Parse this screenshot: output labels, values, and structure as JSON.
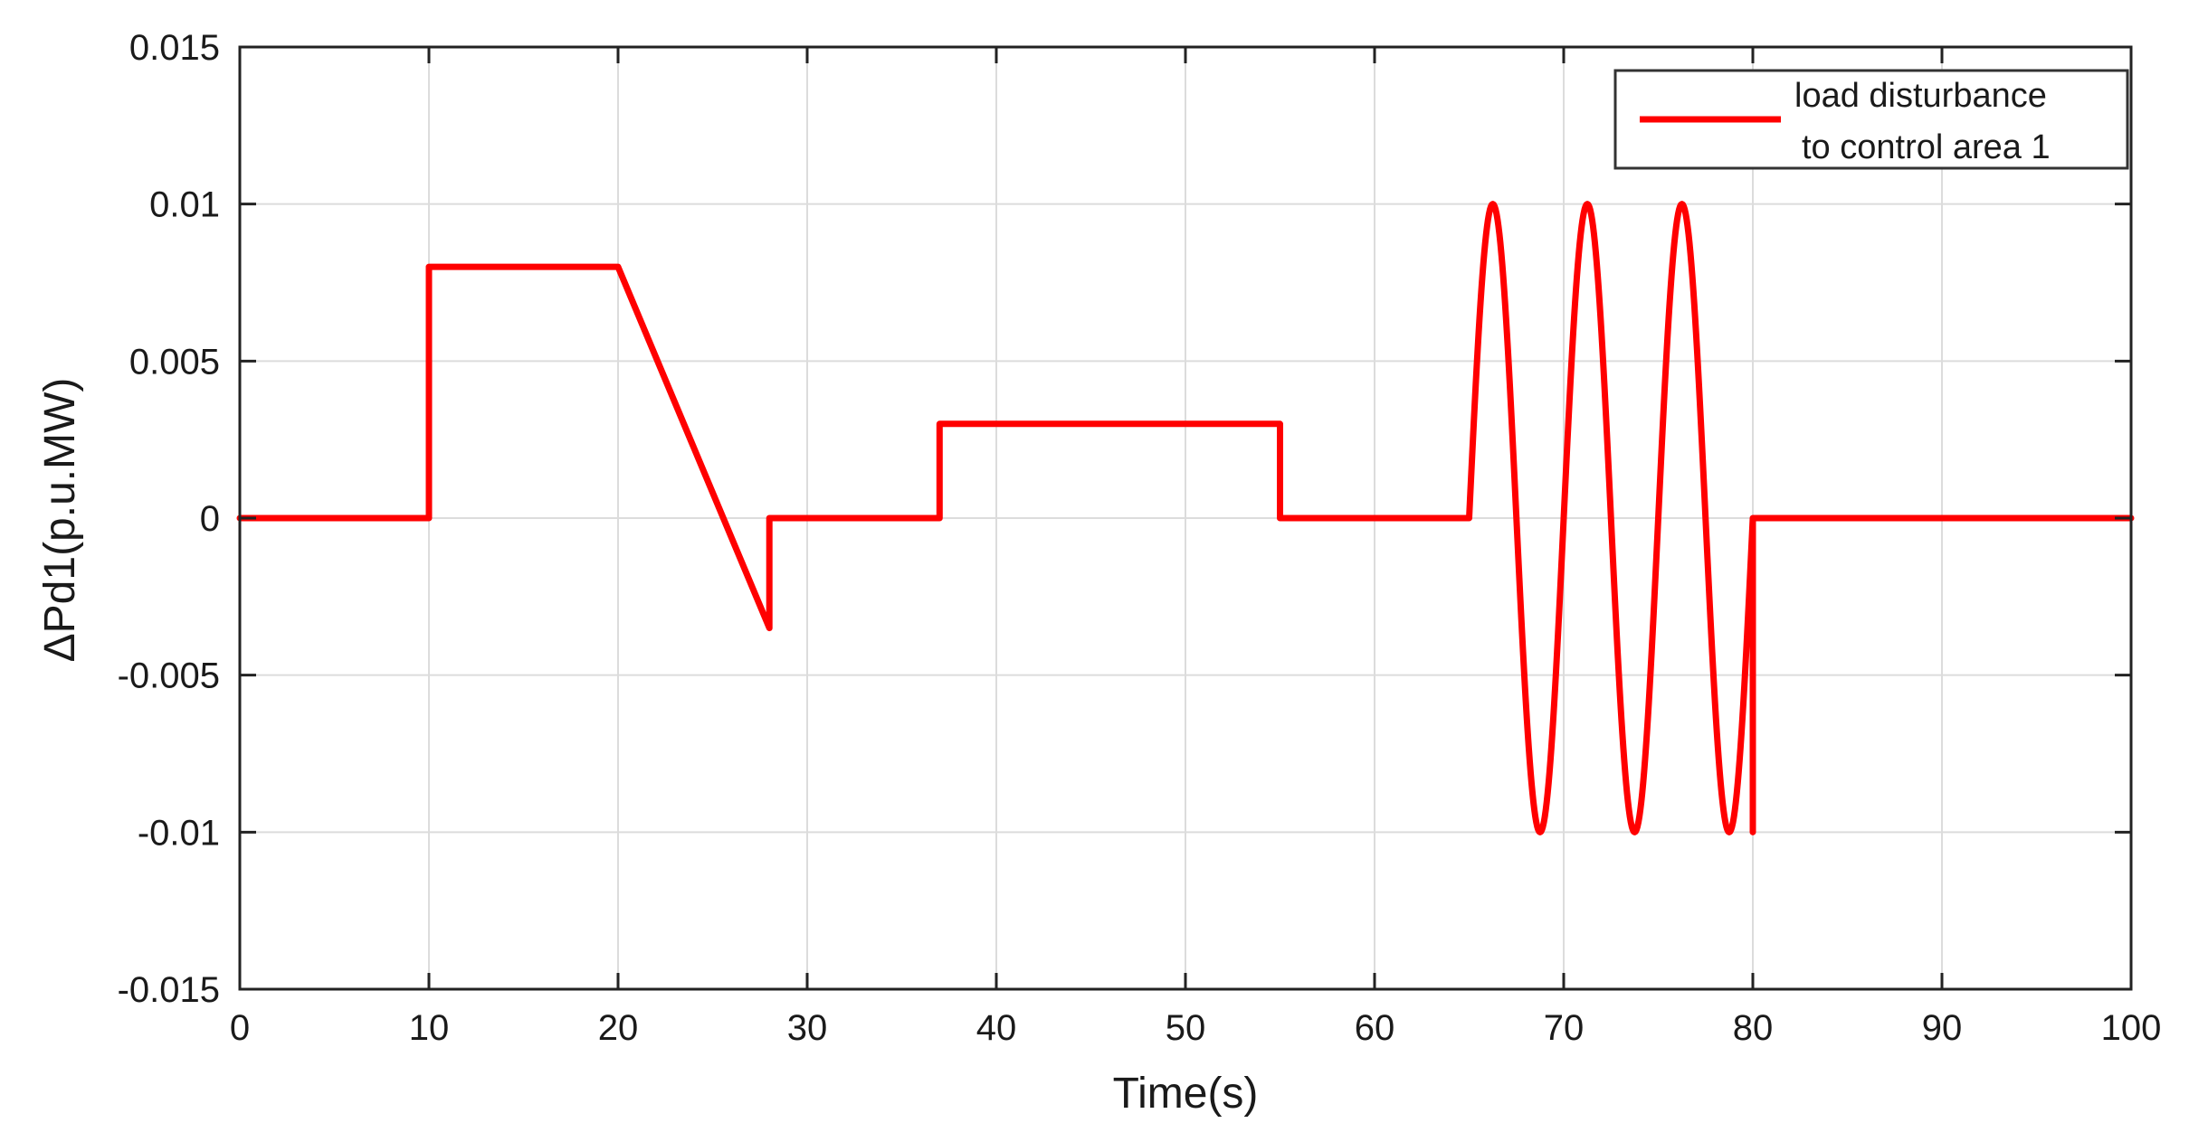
{
  "chart_data": {
    "type": "line",
    "xlabel": "Time(s)",
    "ylabel": "ΔPd1(p.u.MW)",
    "xlim": [
      0,
      100
    ],
    "ylim": [
      -0.015,
      0.015
    ],
    "x_ticks": [
      0,
      10,
      20,
      30,
      40,
      50,
      60,
      70,
      80,
      90,
      100
    ],
    "x_tick_labels": [
      "0",
      "10",
      "20",
      "30",
      "40",
      "50",
      "60",
      "70",
      "80",
      "90",
      "100"
    ],
    "y_ticks": [
      0.015,
      0.01,
      0.005,
      0,
      -0.005,
      -0.01,
      -0.015
    ],
    "y_tick_labels": [
      "0.015",
      "0.01",
      "0.005",
      "0",
      "-0.005",
      "-0.01",
      "-0.015"
    ],
    "grid": true,
    "legend": {
      "placement": "top-right",
      "entries": [
        {
          "lines": [
            "load disturbance",
            "to  control area 1"
          ]
        }
      ]
    },
    "series": [
      {
        "color": "#ff0000",
        "segments": [
          {
            "kind": "linear",
            "x": [
              0,
              10,
              10,
              20,
              28,
              28,
              37,
              37,
              55,
              55,
              65
            ],
            "y": [
              0,
              0,
              0.008,
              0.008,
              -0.0035,
              0,
              0,
              0.003,
              0.003,
              0,
              0
            ]
          },
          {
            "kind": "sine",
            "x_start": 65,
            "x_end": 80,
            "amplitude": 0.01,
            "period": 5,
            "phase_start": 65
          },
          {
            "kind": "linear",
            "x": [
              80,
              80,
              100
            ],
            "y": [
              -0.01,
              0,
              0
            ]
          }
        ]
      }
    ]
  }
}
